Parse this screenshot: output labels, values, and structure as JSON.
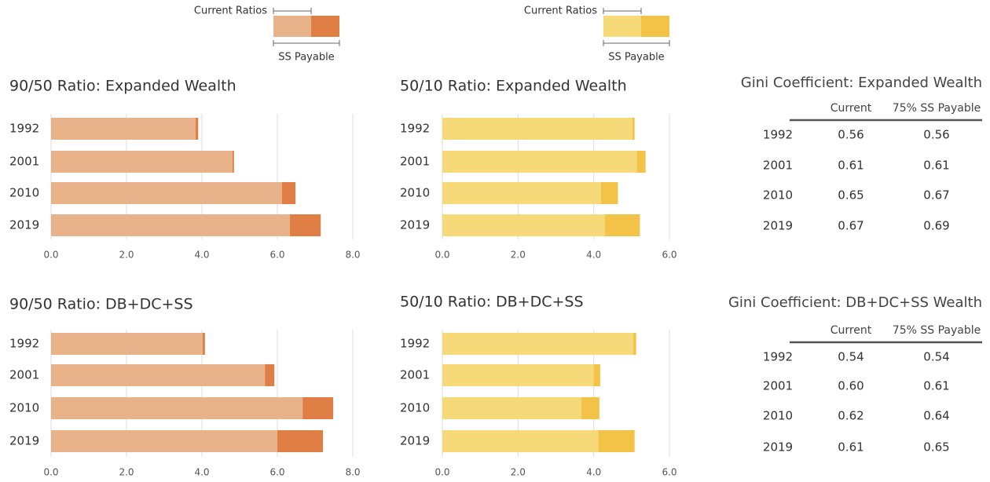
{
  "chart_data": [
    {
      "type": "bar",
      "orientation": "horizontal",
      "stacked": true,
      "title": "90/50 Ratio: Expanded Wealth",
      "categories": [
        "1992",
        "2001",
        "2010",
        "2019"
      ],
      "series": [
        {
          "name": "Current Ratios",
          "color": "#e8b28a",
          "values": [
            3.83,
            4.81,
            6.12,
            6.33
          ]
        },
        {
          "name": "SS Payable",
          "color": "#df7f45",
          "values": [
            0.07,
            0.04,
            0.36,
            0.82
          ]
        }
      ],
      "xlim": [
        0,
        8
      ],
      "xticks": [
        {
          "value": 0,
          "label": "0.0"
        },
        {
          "value": 2,
          "label": "2.0"
        },
        {
          "value": 4,
          "label": "4.0"
        },
        {
          "value": 6,
          "label": "6.0"
        },
        {
          "value": 8,
          "label": "8.0"
        }
      ],
      "grid": true
    },
    {
      "type": "bar",
      "orientation": "horizontal",
      "stacked": true,
      "title": "50/10 Ratio: Expanded Wealth",
      "categories": [
        "1992",
        "2001",
        "2010",
        "2019"
      ],
      "series": [
        {
          "name": "Current Ratios",
          "color": "#f6da7a",
          "values": [
            5.02,
            5.14,
            4.19,
            4.29
          ]
        },
        {
          "name": "SS Payable",
          "color": "#f2c347",
          "values": [
            0.06,
            0.23,
            0.45,
            0.93
          ]
        }
      ],
      "xlim": [
        0,
        6
      ],
      "xticks": [
        {
          "value": 0,
          "label": "0.0"
        },
        {
          "value": 2,
          "label": "2.0"
        },
        {
          "value": 4,
          "label": "4.0"
        },
        {
          "value": 6,
          "label": "6.0"
        }
      ],
      "grid": true
    },
    {
      "type": "bar",
      "orientation": "horizontal",
      "stacked": true,
      "title": "90/50 Ratio: DB+DC+SS",
      "categories": [
        "1992",
        "2001",
        "2010",
        "2019"
      ],
      "series": [
        {
          "color": "#e8b28a",
          "values": [
            4.02,
            5.67,
            6.67,
            6.0
          ]
        },
        {
          "color": "#df7f45",
          "values": [
            0.06,
            0.25,
            0.81,
            1.21
          ]
        }
      ],
      "xlim": [
        0,
        8
      ],
      "xticks": [
        {
          "value": 0,
          "label": "0.0"
        },
        {
          "value": 2,
          "label": "2.0"
        },
        {
          "value": 4,
          "label": "4.0"
        },
        {
          "value": 6,
          "label": "6.0"
        },
        {
          "value": 8,
          "label": "8.0"
        }
      ],
      "grid": true
    },
    {
      "type": "bar",
      "orientation": "horizontal",
      "stacked": true,
      "title": "50/10 Ratio: DB+DC+SS",
      "categories": [
        "1992",
        "2001",
        "2010",
        "2019"
      ],
      "series": [
        {
          "color": "#f6da7a",
          "values": [
            5.04,
            4.0,
            3.67,
            4.12
          ]
        },
        {
          "color": "#f2c347",
          "values": [
            0.08,
            0.17,
            0.48,
            0.96
          ]
        }
      ],
      "xlim": [
        0,
        6
      ],
      "xticks": [
        {
          "value": 0,
          "label": "0.0"
        },
        {
          "value": 2,
          "label": "2.0"
        },
        {
          "value": 4,
          "label": "4.0"
        },
        {
          "value": 6,
          "label": "6.0"
        }
      ],
      "grid": true
    }
  ],
  "tables": [
    {
      "title": "Gini Coefficient: Expanded Wealth",
      "columns": [
        "Current",
        "75% SS Payable"
      ],
      "rows": [
        [
          "1992",
          "0.56",
          "0.56"
        ],
        [
          "2001",
          "0.61",
          "0.61"
        ],
        [
          "2010",
          "0.65",
          "0.67"
        ],
        [
          "2019",
          "0.67",
          "0.69"
        ]
      ]
    },
    {
      "title": "Gini Coefficient: DB+DC+SS Wealth",
      "columns": [
        "Current",
        "75% SS Payable"
      ],
      "rows": [
        [
          "1992",
          "0.54",
          "0.54"
        ],
        [
          "2001",
          "0.60",
          "0.61"
        ],
        [
          "2010",
          "0.62",
          "0.64"
        ],
        [
          "2019",
          "0.61",
          "0.65"
        ]
      ]
    }
  ]
}
